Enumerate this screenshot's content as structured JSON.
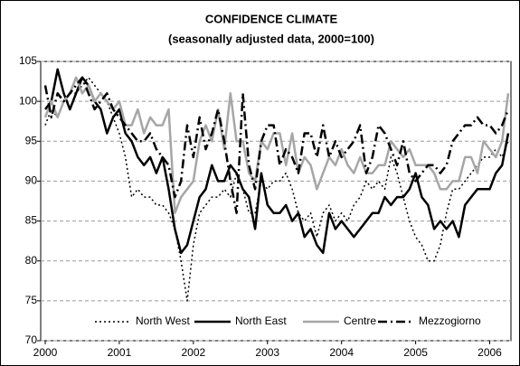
{
  "chart_data": {
    "type": "line",
    "title": "CONFIDENCE CLIMATE",
    "subtitle": "(seasonally adjusted data, 2000=100)",
    "categories": [
      "2000",
      null,
      null,
      null,
      null,
      null,
      null,
      null,
      null,
      null,
      null,
      null,
      "2001",
      null,
      null,
      null,
      null,
      null,
      null,
      null,
      null,
      null,
      null,
      null,
      "2002",
      null,
      null,
      null,
      null,
      null,
      null,
      null,
      null,
      null,
      null,
      null,
      "2003",
      null,
      null,
      null,
      null,
      null,
      null,
      null,
      null,
      null,
      null,
      null,
      "2004",
      null,
      null,
      null,
      null,
      null,
      null,
      null,
      null,
      null,
      null,
      null,
      "2005",
      null,
      null,
      null,
      null,
      null,
      null,
      null,
      null,
      null,
      null,
      null,
      "2006",
      null,
      null,
      null
    ],
    "series": [
      {
        "name": "North West",
        "color": "#000000",
        "dash": "dotted",
        "values": [
          97,
          99,
          98,
          100,
          101,
          101,
          102,
          103,
          102,
          101,
          100,
          98,
          96,
          93,
          88,
          89,
          88,
          88,
          87,
          87,
          86,
          84,
          80,
          75,
          82,
          86,
          87,
          88,
          88,
          89,
          88,
          91,
          89,
          86,
          86,
          90,
          89,
          90,
          90,
          91,
          89,
          86,
          85,
          86,
          83,
          86,
          87,
          85,
          86,
          85,
          87,
          88,
          90,
          89,
          90,
          89,
          93,
          91,
          88,
          85,
          83,
          82,
          80,
          80,
          82,
          86,
          89,
          89,
          90,
          91,
          92,
          93,
          93,
          94,
          93,
          95
        ]
      },
      {
        "name": "North East",
        "color": "#000000",
        "dash": "solid",
        "values": [
          99,
          100,
          104,
          101,
          99,
          101,
          103,
          102,
          100,
          99,
          96,
          98,
          99,
          96,
          95,
          93,
          92,
          93,
          91,
          93,
          89,
          84,
          81,
          82,
          85,
          88,
          89,
          92,
          90,
          90,
          92,
          91,
          89,
          88,
          84,
          91,
          87,
          86,
          86,
          87,
          85,
          86,
          83,
          84,
          82,
          81,
          86,
          84,
          85,
          84,
          83,
          84,
          85,
          86,
          86,
          88,
          87,
          88,
          88,
          89,
          91,
          88,
          87,
          84,
          85,
          84,
          85,
          83,
          87,
          88,
          89,
          89,
          89,
          91,
          92,
          96
        ]
      },
      {
        "name": "Centre",
        "color": "#a6a6a6",
        "dash": "solid",
        "values": [
          98,
          100,
          98,
          100,
          101,
          103,
          101,
          102,
          100,
          101,
          100,
          99,
          100,
          97,
          97,
          99,
          96,
          98,
          97,
          97,
          99,
          86,
          88,
          89,
          90,
          95,
          97,
          95,
          99,
          94,
          101,
          95,
          95,
          91,
          90,
          95,
          94,
          96,
          96,
          92,
          96,
          91,
          93,
          92,
          89,
          91,
          93,
          92,
          94,
          92,
          91,
          93,
          91,
          91,
          92,
          92,
          95,
          94,
          93,
          94,
          92,
          92,
          92,
          91,
          89,
          89,
          90,
          90,
          93,
          93,
          91,
          95,
          94,
          93,
          95,
          101
        ]
      },
      {
        "name": "Mezzogiorno",
        "color": "#000000",
        "dash": "dashdot",
        "values": [
          102,
          98,
          101,
          100,
          101,
          102,
          103,
          101,
          99,
          100,
          101,
          99,
          98,
          97,
          96,
          95,
          95,
          96,
          94,
          93,
          92,
          88,
          90,
          97,
          93,
          98,
          94,
          96,
          99,
          95,
          90,
          86,
          101,
          92,
          89,
          95,
          97,
          97,
          92,
          94,
          93,
          91,
          96,
          96,
          93,
          97,
          93,
          95,
          93,
          94,
          95,
          97,
          91,
          93,
          97,
          96,
          94,
          92,
          95,
          91,
          90,
          91,
          92,
          92,
          91,
          92,
          95,
          96,
          97,
          97,
          98,
          97,
          97,
          96,
          97,
          99
        ]
      }
    ],
    "ylim": [
      70,
      105
    ],
    "yticks": [
      70,
      75,
      80,
      85,
      90,
      95,
      100,
      105
    ],
    "grid": true,
    "legend": "bottom"
  }
}
